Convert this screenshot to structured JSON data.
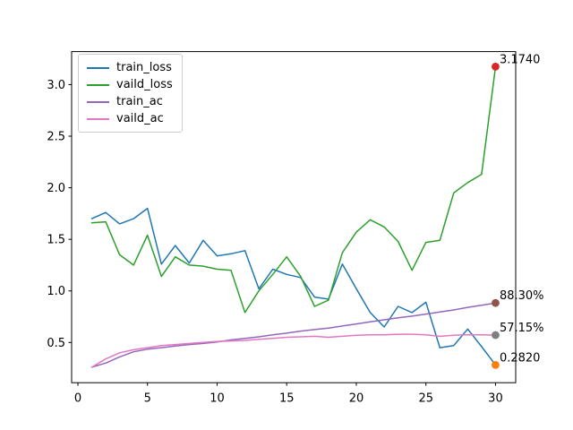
{
  "chart_data": {
    "type": "line",
    "title": "",
    "xlabel": "",
    "ylabel": "",
    "grid": false,
    "background": "#ffffff",
    "spine_color": "#000000",
    "x": [
      1,
      2,
      3,
      4,
      5,
      6,
      7,
      8,
      9,
      10,
      11,
      12,
      13,
      14,
      15,
      16,
      17,
      18,
      19,
      20,
      21,
      22,
      23,
      24,
      25,
      26,
      27,
      28,
      29,
      30
    ],
    "series": [
      {
        "name": "train_loss",
        "color": "#1f77b4",
        "values": [
          1.7,
          1.76,
          1.65,
          1.7,
          1.8,
          1.26,
          1.44,
          1.27,
          1.49,
          1.34,
          1.36,
          1.39,
          1.02,
          1.21,
          1.16,
          1.13,
          0.94,
          0.92,
          1.26,
          1.02,
          0.79,
          0.65,
          0.85,
          0.79,
          0.89,
          0.45,
          0.47,
          0.63,
          0.46,
          0.282
        ]
      },
      {
        "name": "vaild_loss",
        "color": "#2ca02c",
        "values": [
          1.66,
          1.67,
          1.35,
          1.25,
          1.54,
          1.14,
          1.33,
          1.25,
          1.24,
          1.21,
          1.2,
          0.79,
          1.0,
          1.16,
          1.33,
          1.14,
          0.85,
          0.91,
          1.37,
          1.57,
          1.69,
          1.62,
          1.48,
          1.2,
          1.47,
          1.49,
          1.95,
          2.05,
          2.13,
          3.174
        ]
      },
      {
        "name": "train_ac",
        "color": "#9467bd",
        "values": [
          0.26,
          0.3,
          0.36,
          0.41,
          0.435,
          0.45,
          0.465,
          0.48,
          0.49,
          0.505,
          0.525,
          0.54,
          0.555,
          0.575,
          0.59,
          0.61,
          0.625,
          0.64,
          0.66,
          0.68,
          0.7,
          0.72,
          0.74,
          0.755,
          0.775,
          0.795,
          0.815,
          0.84,
          0.86,
          0.883
        ]
      },
      {
        "name": "vaild_ac",
        "color": "#e377c2",
        "values": [
          0.26,
          0.34,
          0.4,
          0.43,
          0.45,
          0.47,
          0.48,
          0.49,
          0.5,
          0.51,
          0.515,
          0.52,
          0.53,
          0.54,
          0.55,
          0.555,
          0.56,
          0.55,
          0.56,
          0.57,
          0.575,
          0.575,
          0.58,
          0.58,
          0.575,
          0.56,
          0.57,
          0.575,
          0.575,
          0.5715
        ]
      }
    ],
    "legend": {
      "position": "upper-left",
      "entries": [
        "train_loss",
        "vaild_loss",
        "train_ac",
        "vaild_ac"
      ]
    },
    "annotations": [
      {
        "text": "3.1740",
        "x": 30,
        "y": 3.174,
        "dot_color": "#d62728"
      },
      {
        "text": "88.30%",
        "x": 30,
        "y": 0.883,
        "dot_color": "#8c564b"
      },
      {
        "text": "57.15%",
        "x": 30,
        "y": 0.5715,
        "dot_color": "#7f7f7f"
      },
      {
        "text": "0.2820",
        "x": 30,
        "y": 0.282,
        "dot_color": "#ff7f0e"
      }
    ],
    "xticks": [
      0,
      5,
      10,
      15,
      20,
      25,
      30
    ],
    "xtick_labels": [
      "0",
      "5",
      "10",
      "15",
      "20",
      "25",
      "30"
    ],
    "yticks": [
      0.5,
      1.0,
      1.5,
      2.0,
      2.5,
      3.0
    ],
    "ytick_labels": [
      "0.5",
      "1.0",
      "1.5",
      "2.0",
      "2.5",
      "3.0"
    ],
    "xlim": [
      -0.45,
      31.45
    ],
    "ylim": [
      0.11,
      3.32
    ]
  }
}
